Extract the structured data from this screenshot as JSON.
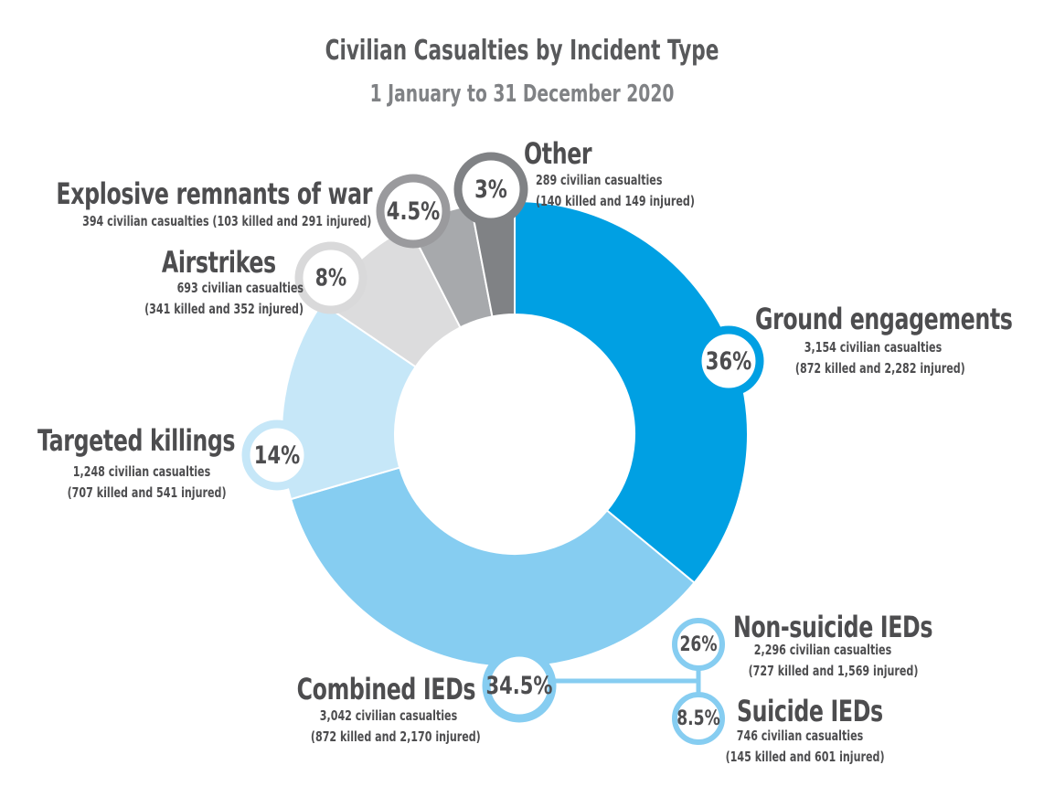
{
  "chart_data": {
    "type": "pie",
    "variant": "donut",
    "title": "Civilian Casualties by Incident Type",
    "subtitle": "1 January to 31 December 2020",
    "slices": [
      {
        "key": "ground",
        "label": "Ground engagements",
        "percent": 36,
        "percent_label": "36%",
        "casualties_text": "3,154 civilian casualties",
        "breakdown_text": "(872 killed and 2,282 injured)",
        "color": "#00a0e3",
        "badge_border": "#00a0e3"
      },
      {
        "key": "combined",
        "label": "Combined IEDs",
        "percent": 34.5,
        "percent_label": "34.5%",
        "casualties_text": "3,042 civilian casualties",
        "breakdown_text": "(872 killed and 2,170 injured)",
        "color": "#86cdf1",
        "badge_border": "#86cdf1"
      },
      {
        "key": "targeted",
        "label": "Targeted killings",
        "percent": 14,
        "percent_label": "14%",
        "casualties_text": "1,248 civilian casualties",
        "breakdown_text": "(707 killed and 541 injured)",
        "color": "#c6e7f8",
        "badge_border": "#c6e7f8"
      },
      {
        "key": "airstrikes",
        "label": "Airstrikes",
        "percent": 8,
        "percent_label": "8%",
        "casualties_text": "693 civilian casualties",
        "breakdown_text": "(341 killed and 352 injured)",
        "color": "#dcdcdd",
        "badge_border": "#d9d9da"
      },
      {
        "key": "erw",
        "label": "Explosive remnants of war",
        "percent": 4.5,
        "percent_label": "4.5%",
        "casualties_text": "394 civilian casualties (103 killed and 291 injured)",
        "color": "#a7a9ac",
        "badge_border": "#9a9a9d"
      },
      {
        "key": "other",
        "label": "Other",
        "percent": 3,
        "percent_label": "3%",
        "casualties_text": "289 civilian casualties",
        "breakdown_text": "(140 killed and 149 injured)",
        "color": "#808285",
        "badge_border": "#808285"
      }
    ],
    "sub_breakdown": [
      {
        "key": "nonsuicide",
        "parent": "combined",
        "label": "Non-suicide IEDs",
        "percent": 26,
        "percent_label": "26%",
        "casualties_text": "2,296 civilian casualties",
        "breakdown_text": "(727 killed and 1,569 injured)"
      },
      {
        "key": "suicide",
        "parent": "combined",
        "label": "Suicide IEDs",
        "percent": 8.5,
        "percent_label": "8.5%",
        "casualties_text": "746 civilian casualties",
        "breakdown_text": "(145 killed and 601 injured)"
      }
    ]
  }
}
